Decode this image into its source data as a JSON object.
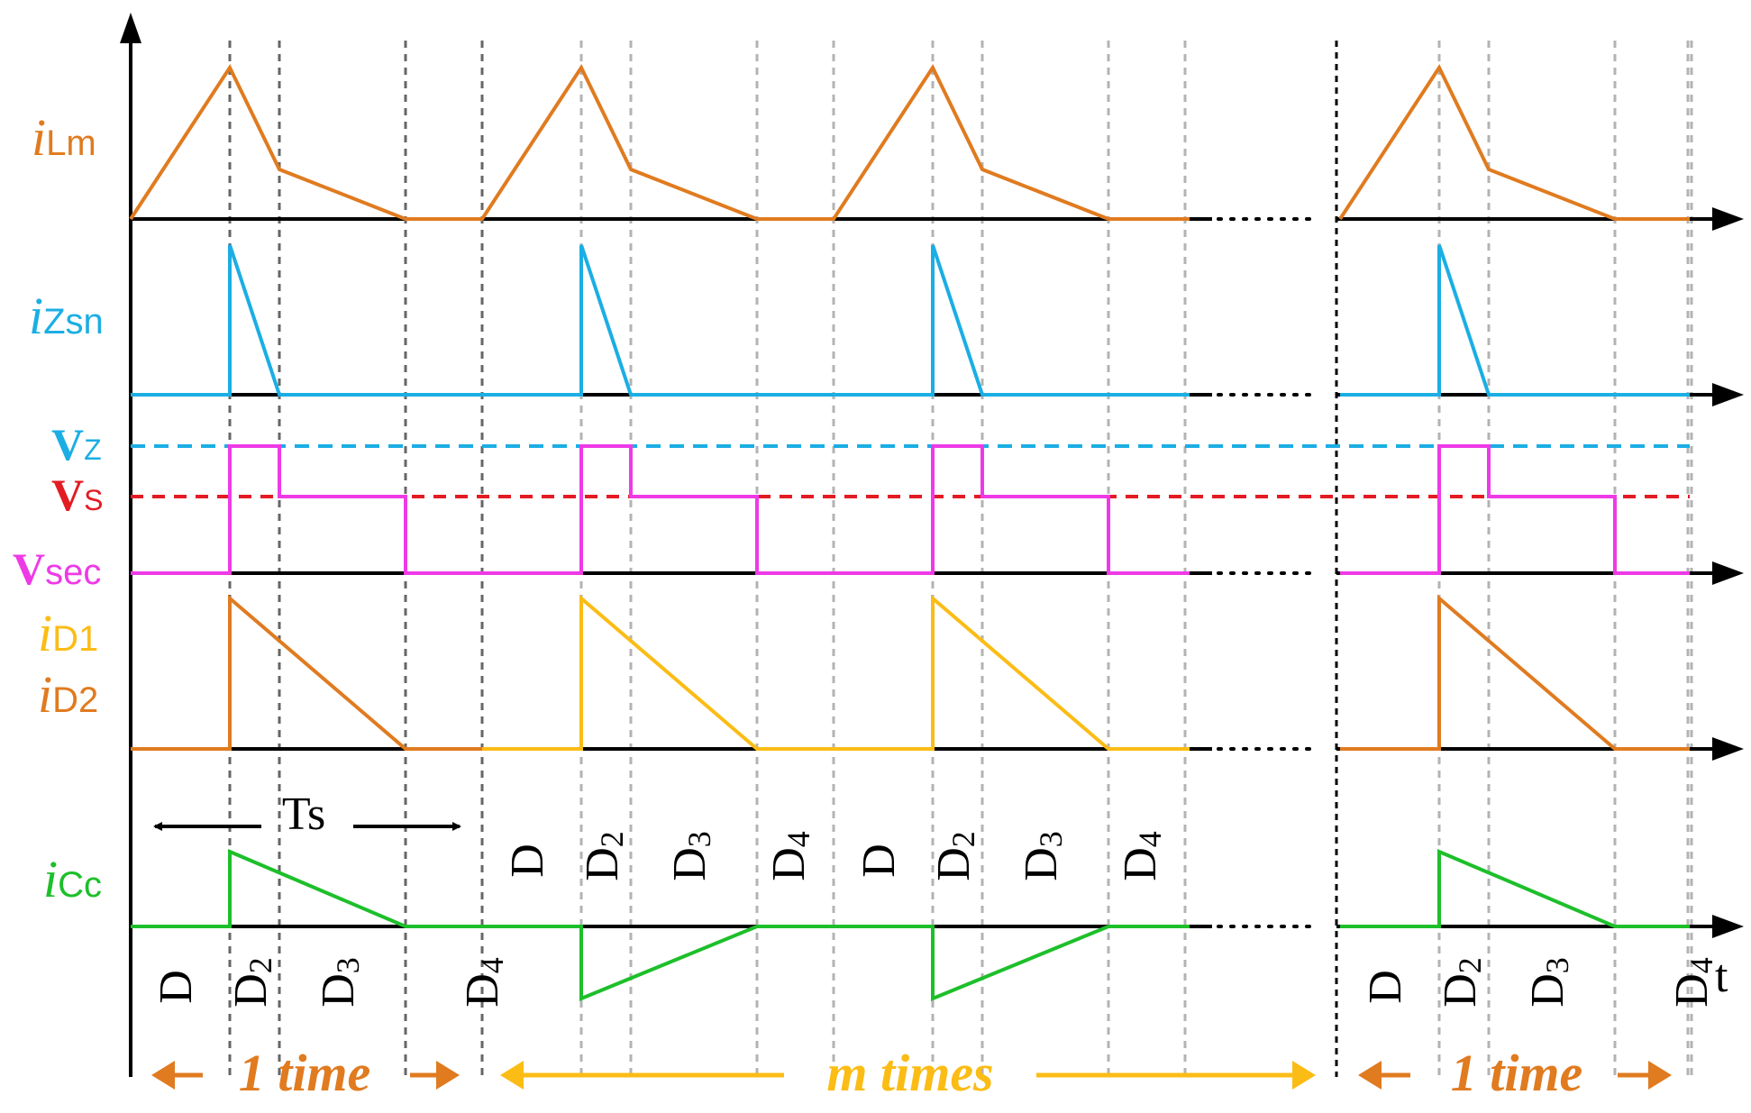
{
  "signals": {
    "iLm": {
      "main": "i",
      "sub": "Lm",
      "color": "#E07B20"
    },
    "iZsn": {
      "main": "i",
      "sub": "Zsn",
      "color": "#1BAEE4"
    },
    "Vz": {
      "main": "V",
      "sub": "Z",
      "color": "#1BAEE4"
    },
    "Vs": {
      "main": "V",
      "sub": "S",
      "color": "#E31B23"
    },
    "Vsec": {
      "main": "V",
      "sub": "sec",
      "color": "#EE3AE6"
    },
    "iD1": {
      "main": "i",
      "sub": "D1",
      "color": "#FBBC15"
    },
    "iD2": {
      "main": "i",
      "sub": "D2",
      "color": "#E07B20"
    },
    "iCc": {
      "main": "i",
      "sub": "Cc",
      "color": "#1DBF2A"
    }
  },
  "time_axis_label": "t",
  "period_label": "Ts",
  "interval_labels": {
    "D": "D",
    "D2": "2",
    "D3": "3",
    "D4": "4",
    "D_base": "D"
  },
  "groups": {
    "first": {
      "label": "1 time",
      "color": "#E07B20"
    },
    "middle": {
      "label": "m times",
      "color": "#FBBC15"
    },
    "last": {
      "label": "1 time",
      "color": "#E07B20"
    }
  },
  "colors": {
    "axis": "#000000",
    "grid": "#b3b3b3",
    "grid_dark": "#666666"
  }
}
